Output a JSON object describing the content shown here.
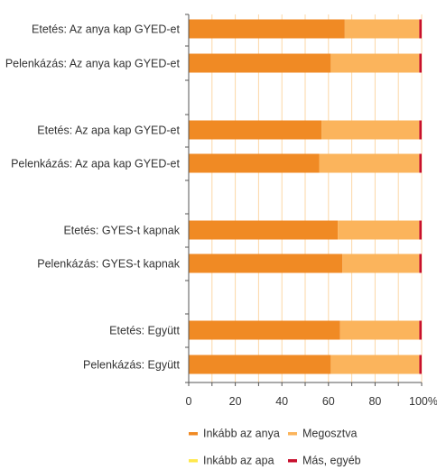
{
  "chart_data": {
    "type": "bar",
    "orientation": "horizontal",
    "stacked": true,
    "categories": [
      "Etetés: Az anya kap GYED-et",
      "Pelenkázás: Az anya kap GYED-et",
      "Etetés: Az apa kap GYED-et",
      "Pelenkázás: Az apa kap GYED-et",
      "Etetés: GYES-t kapnak",
      "Pelenkázás: GYES-t kapnak",
      "Etetés: Együtt",
      "Pelenkázás: Együtt"
    ],
    "series": [
      {
        "name": "Inkább az anya",
        "color": "#f08a24",
        "values": [
          67,
          61,
          57,
          56,
          64,
          66,
          65,
          61
        ]
      },
      {
        "name": "Megosztva",
        "color": "#fbb45c",
        "values": [
          32,
          38,
          42,
          43,
          35,
          33,
          34,
          38
        ]
      },
      {
        "name": "Inkább az apa",
        "color": "#ffe84d",
        "values": [
          0,
          0,
          0,
          0,
          0,
          0,
          0,
          0
        ]
      },
      {
        "name": "Más, egyéb",
        "color": "#c8102e",
        "values": [
          1,
          1,
          1,
          1,
          1,
          1,
          1,
          1
        ]
      }
    ],
    "x_ticks": [
      "0",
      "20",
      "40",
      "60",
      "80",
      "100%"
    ],
    "xlim": [
      0,
      100
    ],
    "grid": "vertical",
    "grid_color": "#fcd7a6",
    "legend_position": "bottom"
  }
}
